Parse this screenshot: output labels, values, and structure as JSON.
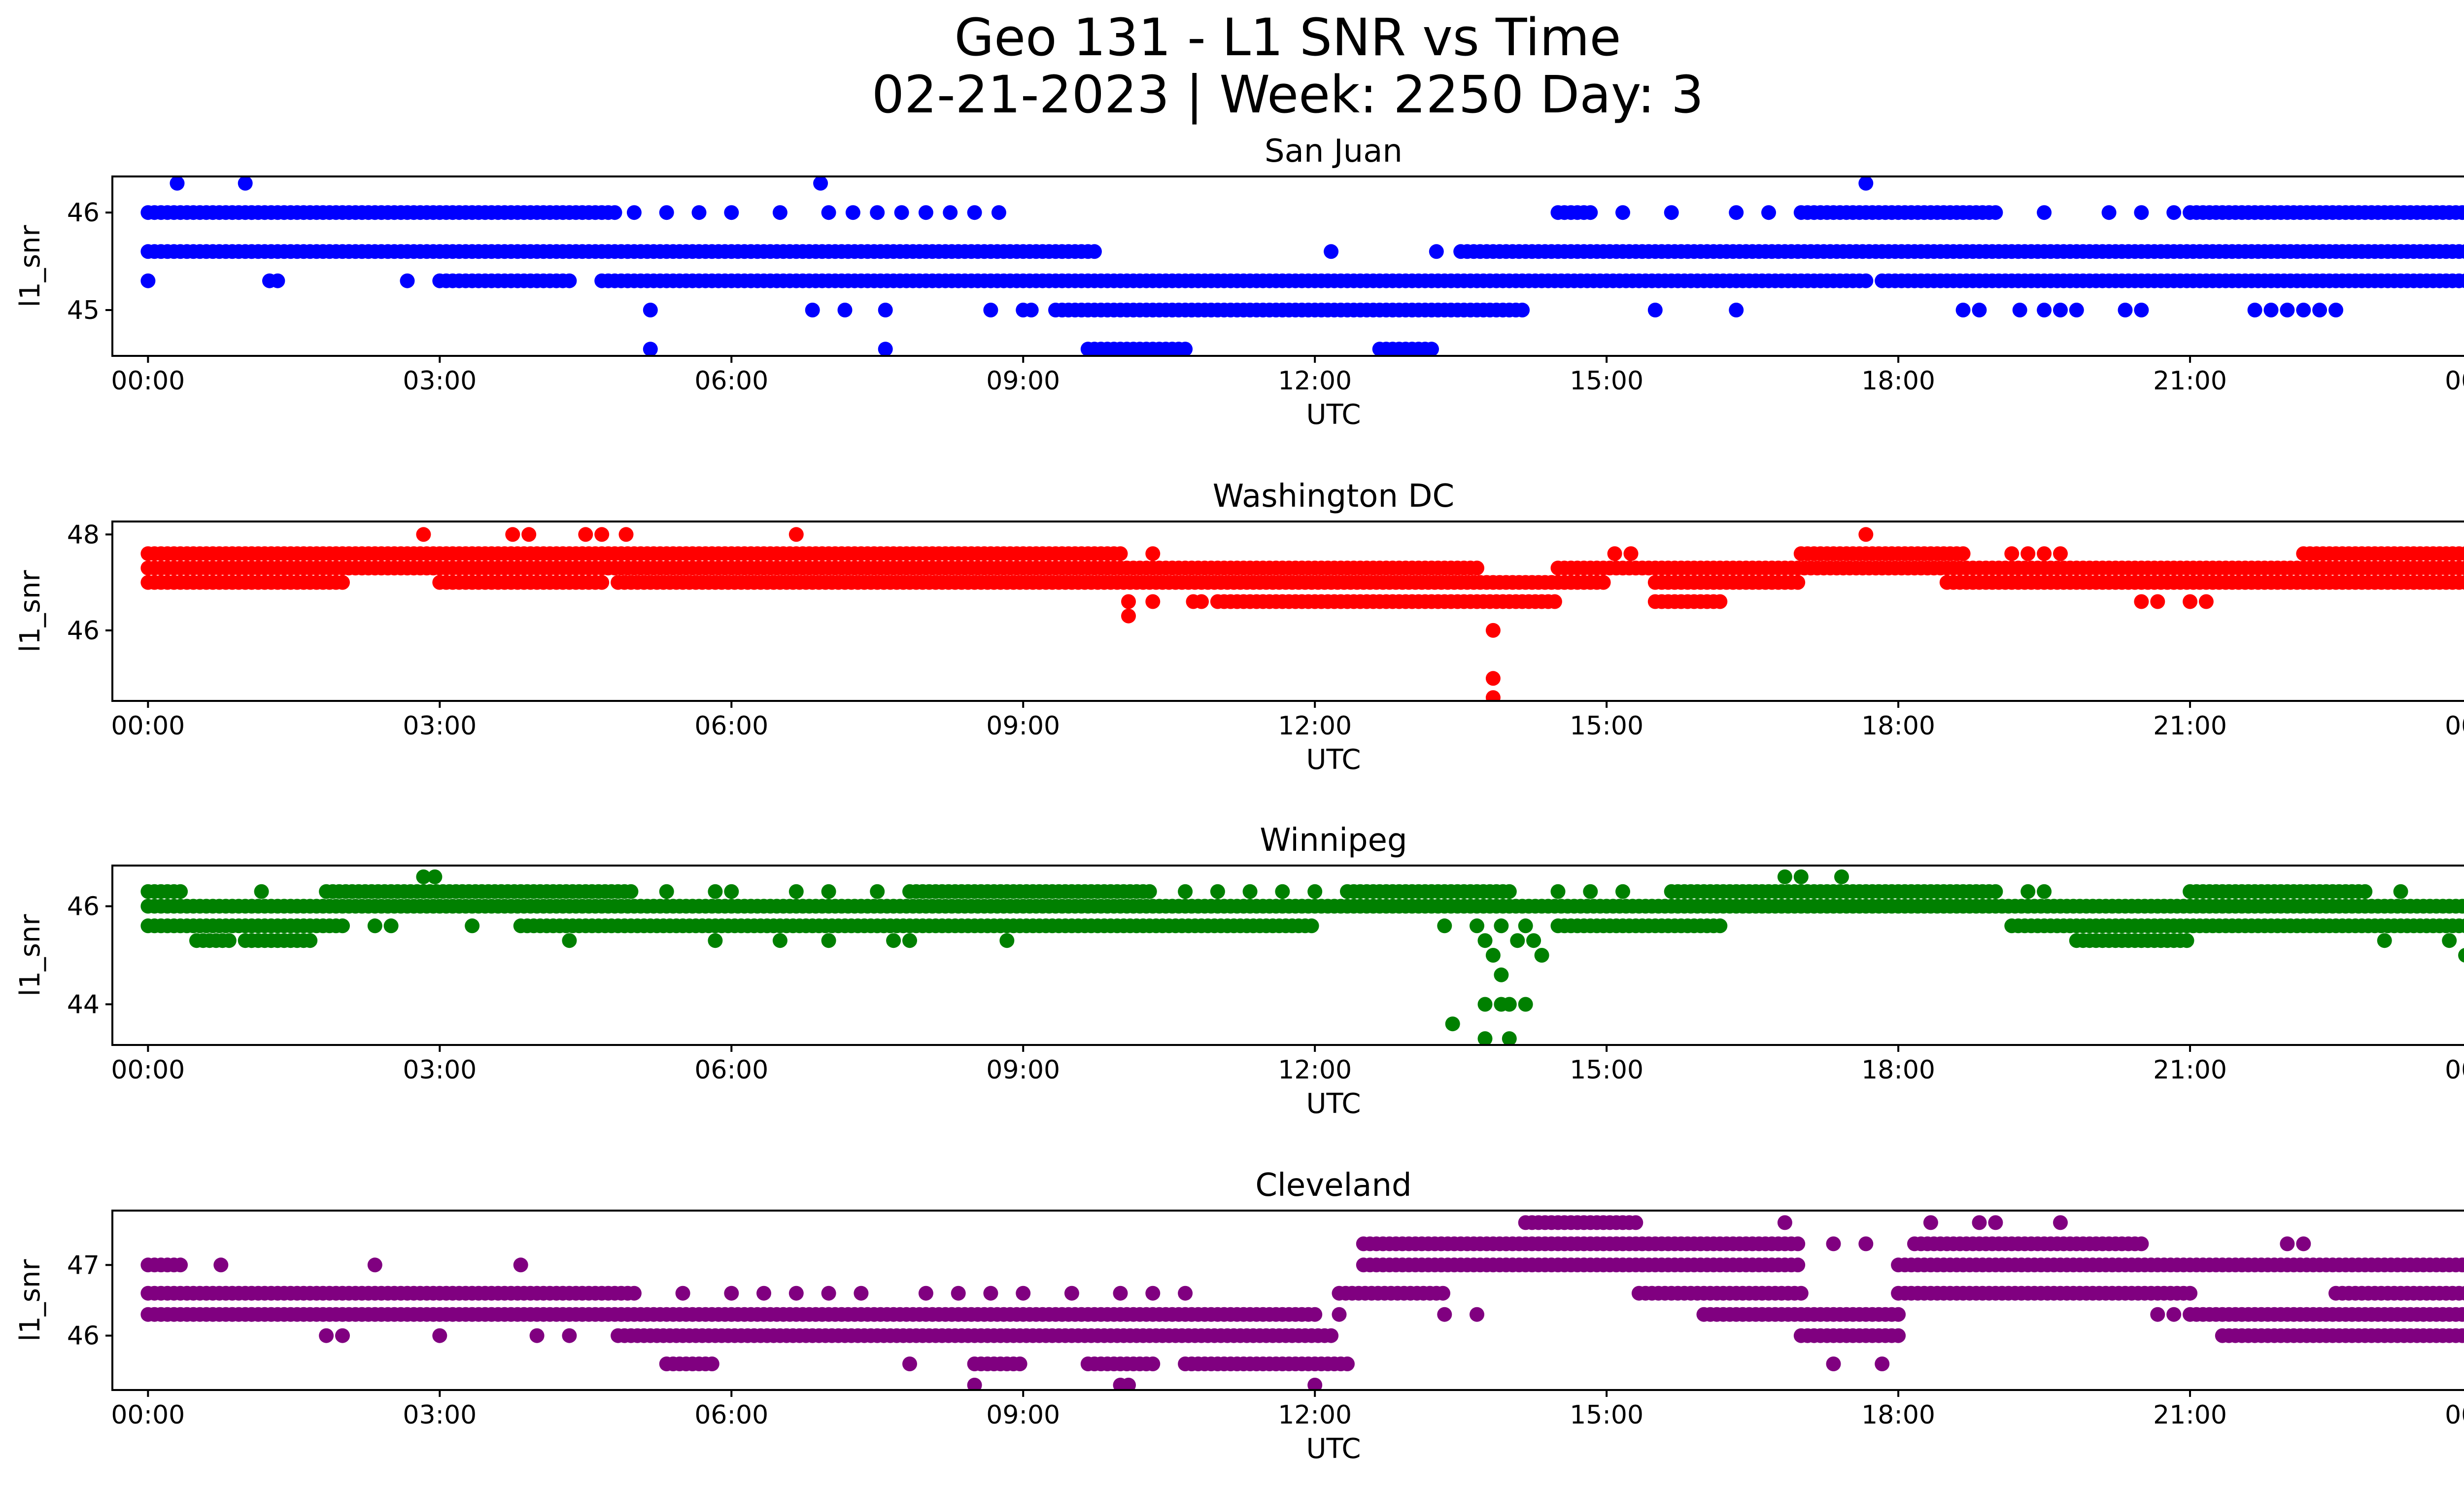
{
  "figure": {
    "title_line1": "Geo 131 - L1 SNR vs Time",
    "title_line2": "02-21-2023 | Week: 2250 Day: 3",
    "background": "#ffffff"
  },
  "chart_data": [
    {
      "type": "scatter",
      "title": "San Juan",
      "xlabel": "UTC",
      "ylabel": "l1_snr",
      "color": "#0000ff",
      "xlim": [
        "-00:22",
        "24:45"
      ],
      "xticks": [
        "00:00",
        "03:00",
        "06:00",
        "09:00",
        "12:00",
        "15:00",
        "18:00",
        "21:00",
        "00:00"
      ],
      "ylim": [
        44.53,
        46.37
      ],
      "yticks": [
        45,
        46
      ],
      "grid": false,
      "levels": [
        {
          "y": 46.3,
          "points": [
            "00:18",
            "01:00",
            "06:55",
            "17:40"
          ]
        },
        {
          "y": 46.0,
          "ranges": [
            [
              "00:00",
              "04:50"
            ],
            [
              "14:30",
              "14:50"
            ],
            [
              "17:00",
              "19:00"
            ],
            [
              "21:00",
              "24:00"
            ]
          ],
          "points": [
            "05:00",
            "05:20",
            "05:40",
            "06:00",
            "06:30",
            "07:00",
            "07:15",
            "07:30",
            "07:45",
            "08:00",
            "08:15",
            "08:30",
            "08:45",
            "15:10",
            "15:40",
            "16:20",
            "16:40",
            "19:30",
            "20:10",
            "20:30",
            "20:50"
          ]
        },
        {
          "y": 45.6,
          "ranges": [
            [
              "00:00",
              "09:45"
            ],
            [
              "13:30",
              "24:00"
            ]
          ],
          "points": [
            "12:10",
            "13:15"
          ]
        },
        {
          "y": 45.3,
          "ranges": [
            [
              "03:00",
              "04:20"
            ],
            [
              "04:40",
              "17:40"
            ],
            [
              "17:50",
              "24:00"
            ]
          ],
          "points": [
            "00:00",
            "01:15",
            "01:20",
            "02:40"
          ]
        },
        {
          "y": 45.0,
          "ranges": [
            [
              "09:20",
              "14:10"
            ]
          ],
          "points": [
            "05:10",
            "06:50",
            "07:10",
            "07:35",
            "08:40",
            "09:00",
            "09:05",
            "15:30",
            "16:20",
            "18:40",
            "18:50",
            "19:15",
            "19:30",
            "19:40",
            "19:50",
            "20:20",
            "20:30",
            "21:40",
            "21:50",
            "22:00",
            "22:10",
            "22:20",
            "22:30"
          ]
        },
        {
          "y": 44.6,
          "ranges": [
            [
              "09:40",
              "10:40"
            ],
            [
              "12:40",
              "13:15"
            ]
          ],
          "points": [
            "05:10",
            "07:35"
          ]
        }
      ]
    },
    {
      "type": "scatter",
      "title": "Washington DC",
      "xlabel": "UTC",
      "ylabel": "l1_snr",
      "color": "#ff0000",
      "xlim": [
        "-00:22",
        "24:45"
      ],
      "xticks": [
        "00:00",
        "03:00",
        "06:00",
        "09:00",
        "12:00",
        "15:00",
        "18:00",
        "21:00",
        "00:00"
      ],
      "ylim": [
        44.53,
        48.27
      ],
      "yticks": [
        46,
        48
      ],
      "grid": false,
      "levels": [
        {
          "y": 48.0,
          "points": [
            "02:50",
            "03:45",
            "03:55",
            "04:30",
            "04:40",
            "04:55",
            "06:40",
            "17:40"
          ]
        },
        {
          "y": 47.6,
          "ranges": [
            [
              "00:00",
              "10:00"
            ],
            [
              "17:00",
              "18:40"
            ],
            [
              "22:10",
              "24:00"
            ]
          ],
          "points": [
            "10:20",
            "15:05",
            "15:15",
            "19:10",
            "19:20",
            "19:30",
            "19:40"
          ]
        },
        {
          "y": 47.3,
          "ranges": [
            [
              "00:00",
              "13:40"
            ],
            [
              "14:30",
              "24:00"
            ]
          ]
        },
        {
          "y": 47.0,
          "ranges": [
            [
              "00:00",
              "02:00"
            ],
            [
              "03:00",
              "04:40"
            ],
            [
              "04:50",
              "15:00"
            ],
            [
              "15:30",
              "17:00"
            ],
            [
              "18:30",
              "24:00"
            ]
          ]
        },
        {
          "y": 46.6,
          "ranges": [
            [
              "11:00",
              "14:30"
            ],
            [
              "15:30",
              "16:10"
            ]
          ],
          "points": [
            "10:05",
            "10:20",
            "10:45",
            "10:50",
            "20:30",
            "20:40",
            "21:00",
            "21:10"
          ]
        },
        {
          "y": 46.3,
          "points": [
            "10:05"
          ]
        },
        {
          "y": 46.0,
          "points": [
            "13:50"
          ]
        },
        {
          "y": 45.0,
          "points": [
            "13:50"
          ]
        },
        {
          "y": 44.6,
          "points": [
            "13:50"
          ]
        }
      ]
    },
    {
      "type": "scatter",
      "title": "Winnipeg",
      "xlabel": "UTC",
      "ylabel": "l1_snr",
      "color": "#008000",
      "xlim": [
        "-00:22",
        "24:45"
      ],
      "xticks": [
        "00:00",
        "03:00",
        "06:00",
        "09:00",
        "12:00",
        "15:00",
        "18:00",
        "21:00",
        "00:00"
      ],
      "ylim": [
        43.17,
        46.83
      ],
      "yticks": [
        44,
        46
      ],
      "grid": false,
      "levels": [
        {
          "y": 46.6,
          "points": [
            "02:50",
            "02:57",
            "16:50",
            "17:00",
            "17:25"
          ]
        },
        {
          "y": 46.3,
          "ranges": [
            [
              "00:00",
              "00:20"
            ],
            [
              "01:50",
              "05:00"
            ],
            [
              "07:50",
              "10:20"
            ],
            [
              "12:20",
              "14:00"
            ],
            [
              "15:40",
              "19:00"
            ],
            [
              "21:00",
              "22:50"
            ]
          ],
          "points": [
            "01:10",
            "05:20",
            "05:50",
            "06:00",
            "06:40",
            "07:00",
            "07:30",
            "10:40",
            "11:00",
            "11:20",
            "11:40",
            "12:00",
            "14:30",
            "14:50",
            "15:10",
            "19:20",
            "19:30",
            "23:10"
          ]
        },
        {
          "y": 46.0,
          "ranges": [
            [
              "00:00",
              "24:00"
            ]
          ]
        },
        {
          "y": 45.6,
          "ranges": [
            [
              "00:00",
              "02:00"
            ],
            [
              "03:50",
              "12:00"
            ],
            [
              "14:30",
              "16:10"
            ],
            [
              "19:10",
              "24:00"
            ]
          ],
          "points": [
            "02:20",
            "02:30",
            "03:20",
            "13:20",
            "13:40",
            "13:55",
            "14:10"
          ]
        },
        {
          "y": 45.3,
          "ranges": [
            [
              "00:30",
              "00:50"
            ],
            [
              "01:00",
              "01:40"
            ],
            [
              "19:50",
              "21:00"
            ]
          ],
          "points": [
            "04:20",
            "05:50",
            "06:30",
            "07:00",
            "07:40",
            "07:50",
            "08:50",
            "13:45",
            "14:05",
            "14:15",
            "23:00",
            "23:40",
            "23:55"
          ]
        },
        {
          "y": 45.0,
          "points": [
            "13:50",
            "14:20",
            "23:50"
          ]
        },
        {
          "y": 44.6,
          "points": [
            "13:55"
          ]
        },
        {
          "y": 44.0,
          "points": [
            "13:45",
            "13:55",
            "14:00",
            "14:10"
          ]
        },
        {
          "y": 43.6,
          "points": [
            "13:25"
          ]
        },
        {
          "y": 43.3,
          "points": [
            "13:45",
            "14:00"
          ]
        }
      ]
    },
    {
      "type": "scatter",
      "title": "Cleveland",
      "xlabel": "UTC",
      "ylabel": "l1_snr",
      "color": "#800080",
      "xlim": [
        "-00:22",
        "24:45"
      ],
      "xticks": [
        "00:00",
        "03:00",
        "06:00",
        "09:00",
        "12:00",
        "15:00",
        "18:00",
        "21:00",
        "00:00"
      ],
      "ylim": [
        45.23,
        47.77
      ],
      "yticks": [
        46,
        47
      ],
      "grid": false,
      "levels": [
        {
          "y": 47.6,
          "ranges": [
            [
              "14:10",
              "15:20"
            ]
          ],
          "points": [
            "16:50",
            "18:20",
            "18:50",
            "19:00",
            "19:40"
          ]
        },
        {
          "y": 47.3,
          "ranges": [
            [
              "12:30",
              "17:00"
            ],
            [
              "18:10",
              "20:30"
            ]
          ],
          "points": [
            "17:20",
            "17:40",
            "22:00",
            "22:10"
          ]
        },
        {
          "y": 47.0,
          "ranges": [
            [
              "00:00",
              "00:20"
            ],
            [
              "12:30",
              "17:00"
            ],
            [
              "18:00",
              "24:00"
            ]
          ],
          "points": [
            "00:45",
            "02:20",
            "03:50"
          ]
        },
        {
          "y": 46.6,
          "ranges": [
            [
              "00:00",
              "05:00"
            ],
            [
              "12:15",
              "13:20"
            ],
            [
              "15:20",
              "17:00"
            ],
            [
              "18:00",
              "21:00"
            ],
            [
              "22:30",
              "24:00"
            ]
          ],
          "points": [
            "05:30",
            "06:00",
            "06:20",
            "06:40",
            "07:00",
            "07:20",
            "08:00",
            "08:20",
            "08:40",
            "09:00",
            "09:30",
            "10:00",
            "10:20",
            "10:40"
          ]
        },
        {
          "y": 46.3,
          "ranges": [
            [
              "00:00",
              "12:00"
            ],
            [
              "16:00",
              "18:00"
            ],
            [
              "21:00",
              "24:00"
            ]
          ],
          "points": [
            "12:15",
            "13:20",
            "13:40",
            "20:40",
            "20:50"
          ]
        },
        {
          "y": 46.0,
          "ranges": [
            [
              "04:50",
              "12:10"
            ],
            [
              "17:00",
              "18:00"
            ],
            [
              "21:20",
              "24:00"
            ]
          ],
          "points": [
            "01:50",
            "02:00",
            "03:00",
            "04:00",
            "04:20"
          ]
        },
        {
          "y": 45.6,
          "ranges": [
            [
              "05:20",
              "05:50"
            ],
            [
              "08:30",
              "09:00"
            ],
            [
              "09:40",
              "10:20"
            ],
            [
              "10:40",
              "12:20"
            ]
          ],
          "points": [
            "07:50",
            "17:20",
            "17:50"
          ]
        },
        {
          "y": 45.3,
          "points": [
            "08:30",
            "10:00",
            "10:05",
            "12:00"
          ]
        }
      ]
    }
  ]
}
